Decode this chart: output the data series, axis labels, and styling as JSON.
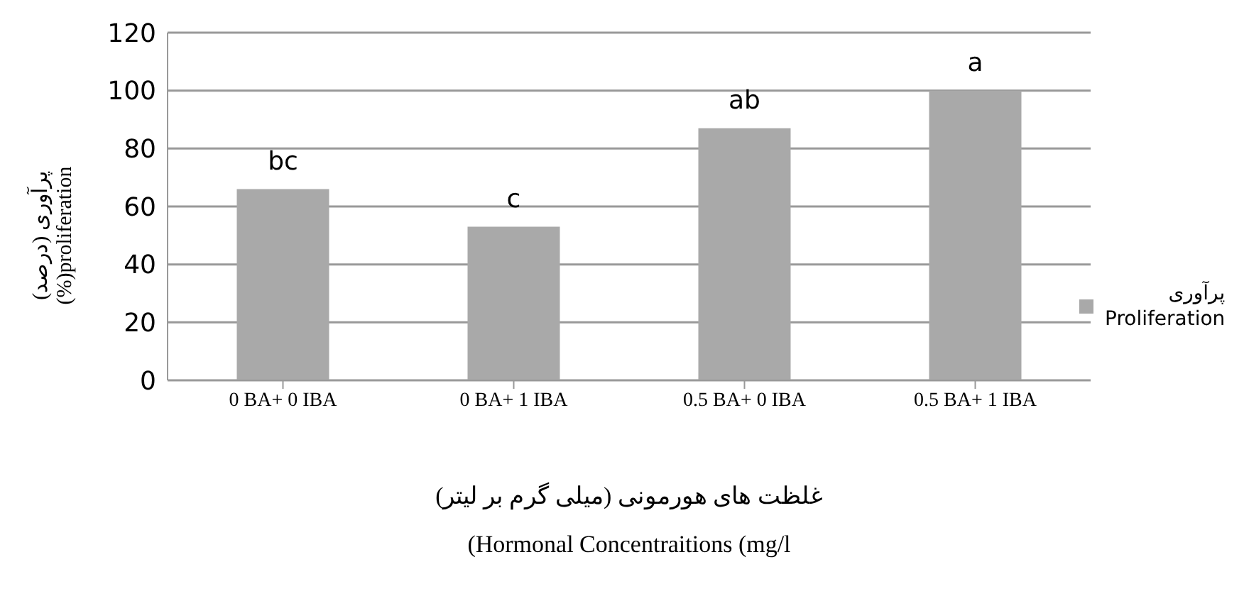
{
  "chart_data": {
    "type": "bar",
    "xlabel": "غلظت های هورمونی (میلی گرم بر لیتر)\n(Hormonal Concentraitions (mg/l",
    "ylabel": "پرآوری (درصد)\n(%)proliferation",
    "categories": [
      "0 BA+ 0 IBA",
      "0 BA+ 1 IBA",
      "0.5 BA+ 0 IBA",
      "0.5 BA+ 1 IBA"
    ],
    "series": [
      {
        "name": "پرآوری\nProliferation",
        "color": "#a9a9a9",
        "values": [
          66,
          53,
          87,
          100
        ]
      }
    ],
    "ylim": [
      0,
      120
    ],
    "yticks": [
      0,
      20,
      40,
      60,
      80,
      100,
      120
    ],
    "grid": "y",
    "legend": "right",
    "annotations": [
      {
        "text": "bc",
        "x": "0 BA+ 0 IBA",
        "y": 66
      },
      {
        "text": "c",
        "x": "0 BA+ 1 IBA",
        "y": 53
      },
      {
        "text": "ab",
        "x": "0.5 BA+ 0 IBA",
        "y": 87
      },
      {
        "text": "a",
        "x": "0.5 BA+ 1 IBA",
        "y": 100
      }
    ]
  }
}
